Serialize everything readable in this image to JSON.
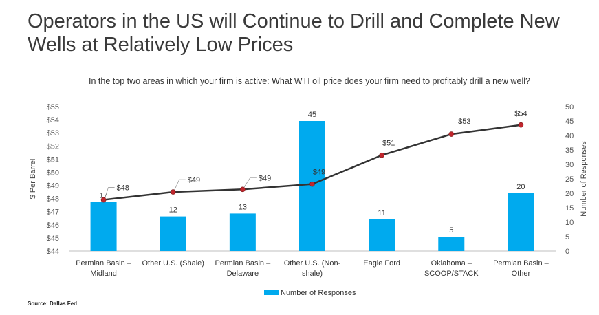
{
  "slide": {
    "title": "Operators in the US will Continue to Drill and Complete New Wells at Relatively Low Prices",
    "source": "Source: Dallas Fed"
  },
  "chart_data": {
    "type": "bar+line",
    "title": "In the top two areas in which your firm is active: What WTI oil price does your firm need to profitably drill a new well?",
    "categories": [
      [
        "Permian Basin –",
        "Midland"
      ],
      [
        "Other U.S. (Shale)"
      ],
      [
        "Permian Basin –",
        "Delaware"
      ],
      [
        "Other U.S. (Non-",
        "shale)"
      ],
      [
        "Eagle Ford"
      ],
      [
        "Oklahoma –",
        "SCOOP/STACK"
      ],
      [
        "Permian Basin –",
        "Other"
      ]
    ],
    "bar_series": {
      "name": "Number of Responses",
      "values": [
        17,
        12,
        13,
        45,
        11,
        5,
        20
      ],
      "color": "#00aaee",
      "axis": "right"
    },
    "line_series": {
      "name": "Breakeven price",
      "values": [
        47.9,
        48.5,
        48.7,
        49.1,
        51.3,
        52.9,
        53.6
      ],
      "labels": [
        "$48",
        "$49",
        "$49",
        "$49",
        "$51",
        "$53",
        "$54"
      ],
      "line_color": "#333333",
      "marker_color": "#c0262d",
      "axis": "left"
    },
    "left_axis": {
      "label": "$ Per Barrel",
      "min": 44,
      "max": 55,
      "step": 1,
      "ticks": [
        "$44",
        "$45",
        "$46",
        "$47",
        "$48",
        "$49",
        "$50",
        "$51",
        "$52",
        "$53",
        "$54",
        "$55"
      ]
    },
    "right_axis": {
      "label": "Number of Responses",
      "min": 0,
      "max": 50,
      "step": 5,
      "ticks": [
        "0",
        "5",
        "10",
        "15",
        "20",
        "25",
        "30",
        "35",
        "40",
        "45",
        "50"
      ]
    },
    "legend": {
      "label": "Number of Responses",
      "position": "bottom-center"
    },
    "grid": false
  }
}
